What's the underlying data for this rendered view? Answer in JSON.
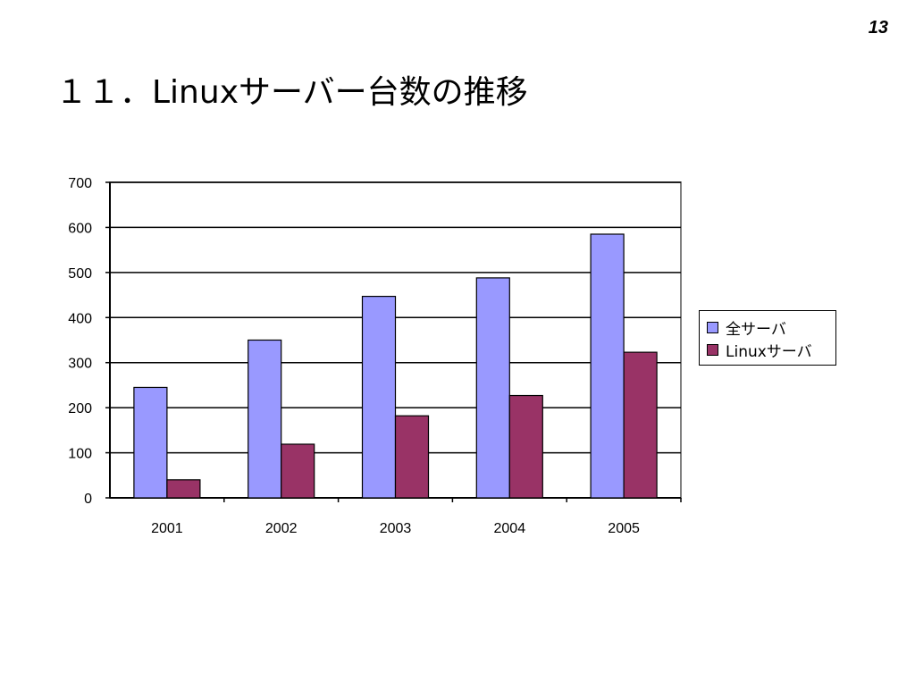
{
  "page_number": "13",
  "title": "１１．Linuxサーバー台数の推移",
  "colors": {
    "series_all": "#9999ff",
    "series_linux": "#993366",
    "grid": "#000000"
  },
  "chart_data": {
    "type": "bar",
    "title": "",
    "xlabel": "",
    "ylabel": "",
    "categories": [
      "2001",
      "2002",
      "2003",
      "2004",
      "2005"
    ],
    "series": [
      {
        "name": "全サーバ",
        "values": [
          245,
          350,
          447,
          488,
          585
        ]
      },
      {
        "name": "Linuxサーバ",
        "values": [
          40,
          119,
          182,
          227,
          323
        ]
      }
    ],
    "ylim": [
      0,
      700
    ],
    "yticks": [
      "0",
      "100",
      "200",
      "300",
      "400",
      "500",
      "600",
      "700"
    ],
    "grid": true,
    "legend_position": "right"
  }
}
